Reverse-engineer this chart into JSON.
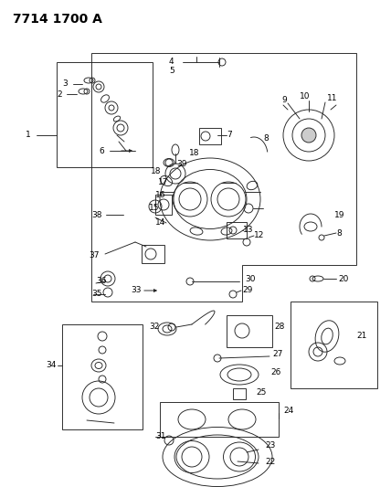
{
  "title": "7714 1700 A",
  "bg_color": "#ffffff",
  "lc": "#222222",
  "title_fontsize": 10,
  "fs": 6.5,
  "figsize": [
    4.28,
    5.33
  ],
  "dpi": 100
}
